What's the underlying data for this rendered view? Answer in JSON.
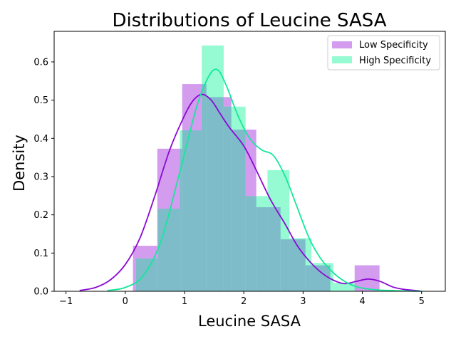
{
  "chart_data": {
    "type": "bar",
    "title": "Distributions of Leucine SASA",
    "xlabel": "Leucine SASA",
    "ylabel": "Density",
    "xlim": [
      -1.2,
      5.4
    ],
    "ylim": [
      0,
      0.68
    ],
    "xticks": [
      -1,
      0,
      1,
      2,
      3,
      4,
      5
    ],
    "yticks": [
      0.0,
      0.1,
      0.2,
      0.3,
      0.4,
      0.5,
      0.6
    ],
    "xtick_labels": [
      "−1",
      "0",
      "1",
      "2",
      "3",
      "4",
      "5"
    ],
    "ytick_labels": [
      "0.0",
      "0.1",
      "0.2",
      "0.3",
      "0.4",
      "0.5",
      "0.6"
    ],
    "legend": {
      "placement": "top-right",
      "entries": [
        "Low Specificity",
        "High Specificity"
      ]
    },
    "colors": {
      "low_bar": "#d39cee",
      "high_bar": "#96fad3",
      "overlap_bar": "#7fbcca",
      "low_line": "#8b0bd4",
      "high_line": "#14e89a"
    },
    "series": [
      {
        "name": "Low Specificity",
        "color": "#8b0bd4",
        "bins": [
          {
            "x0": 0.13,
            "x1": 0.54,
            "density": 0.119
          },
          {
            "x0": 0.54,
            "x1": 0.96,
            "density": 0.373
          },
          {
            "x0": 0.96,
            "x1": 1.37,
            "density": 0.542
          },
          {
            "x0": 1.37,
            "x1": 1.79,
            "density": 0.508
          },
          {
            "x0": 1.79,
            "x1": 2.21,
            "density": 0.423
          },
          {
            "x0": 2.21,
            "x1": 2.62,
            "density": 0.22
          },
          {
            "x0": 2.62,
            "x1": 3.04,
            "density": 0.136
          },
          {
            "x0": 3.04,
            "x1": 3.46,
            "density": 0.068
          },
          {
            "x0": 3.46,
            "x1": 3.87,
            "density": 0.0
          },
          {
            "x0": 3.87,
            "x1": 4.29,
            "density": 0.068
          }
        ],
        "kde": {
          "x": [
            -0.77,
            -0.5,
            -0.25,
            0.0,
            0.25,
            0.5,
            0.75,
            1.0,
            1.15,
            1.3,
            1.45,
            1.6,
            1.75,
            2.0,
            2.2,
            2.45,
            2.7,
            2.9,
            3.1,
            3.3,
            3.5,
            3.7,
            3.9,
            4.1,
            4.3,
            4.5,
            4.7,
            4.97
          ],
          "y": [
            0.002,
            0.01,
            0.03,
            0.07,
            0.14,
            0.25,
            0.37,
            0.46,
            0.5,
            0.515,
            0.5,
            0.465,
            0.43,
            0.38,
            0.32,
            0.24,
            0.175,
            0.12,
            0.08,
            0.05,
            0.03,
            0.02,
            0.026,
            0.032,
            0.026,
            0.012,
            0.005,
            0.001
          ]
        }
      },
      {
        "name": "High Specificity",
        "color": "#14e89a",
        "bins": [
          {
            "x0": 0.18,
            "x1": 0.55,
            "density": 0.086
          },
          {
            "x0": 0.55,
            "x1": 0.92,
            "density": 0.216
          },
          {
            "x0": 0.92,
            "x1": 1.29,
            "density": 0.421
          },
          {
            "x0": 1.29,
            "x1": 1.66,
            "density": 0.643
          },
          {
            "x0": 1.66,
            "x1": 2.03,
            "density": 0.483
          },
          {
            "x0": 2.03,
            "x1": 2.4,
            "density": 0.249
          },
          {
            "x0": 2.4,
            "x1": 2.77,
            "density": 0.317
          },
          {
            "x0": 2.77,
            "x1": 3.14,
            "density": 0.139
          },
          {
            "x0": 3.14,
            "x1": 3.51,
            "density": 0.074
          },
          {
            "x0": 3.51,
            "x1": 3.88,
            "density": 0.022
          }
        ],
        "kde": {
          "x": [
            -0.3,
            0.0,
            0.3,
            0.6,
            0.9,
            1.2,
            1.4,
            1.55,
            1.7,
            1.9,
            2.1,
            2.3,
            2.5,
            2.7,
            2.9,
            3.1,
            3.3,
            3.5,
            3.7,
            3.9,
            4.1,
            4.3,
            4.5,
            4.7,
            5.0
          ],
          "y": [
            0.002,
            0.01,
            0.04,
            0.13,
            0.3,
            0.48,
            0.56,
            0.58,
            0.54,
            0.46,
            0.4,
            0.37,
            0.355,
            0.3,
            0.22,
            0.14,
            0.085,
            0.05,
            0.026,
            0.012,
            0.006,
            0.003,
            0.002,
            0.001,
            0.0
          ]
        }
      }
    ]
  }
}
